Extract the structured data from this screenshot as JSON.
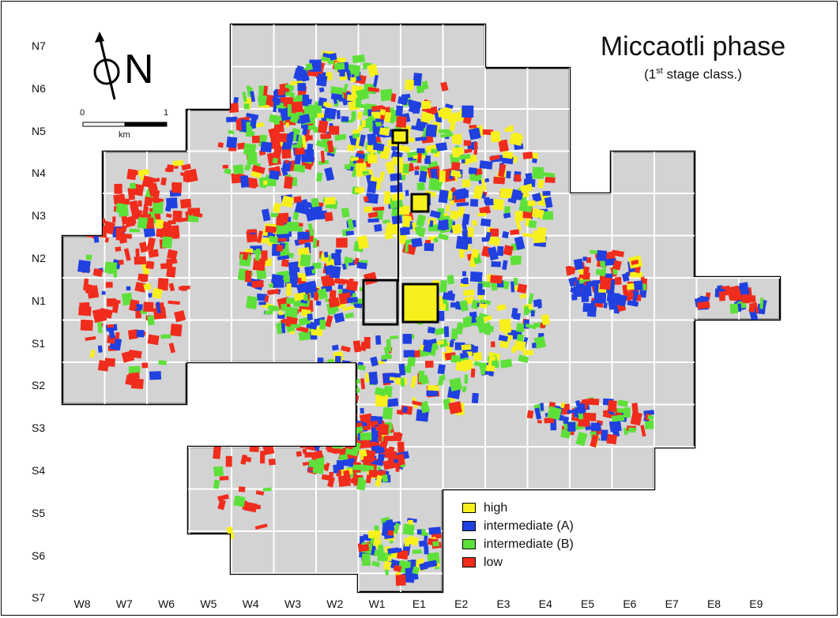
{
  "title": "Miccaotli phase",
  "subtitle": {
    "prefix": "(1",
    "sup": "st",
    "suffix": " stage class.)"
  },
  "north_arrow": {
    "label": "N"
  },
  "scale_bar": {
    "start": "0",
    "end": "1",
    "unit": "km"
  },
  "row_labels": [
    "N7",
    "N6",
    "N5",
    "N4",
    "N3",
    "N2",
    "N1",
    "S1",
    "S2",
    "S3",
    "S4",
    "S5",
    "S6",
    "S7"
  ],
  "col_labels": [
    "W8",
    "W7",
    "W6",
    "W5",
    "W4",
    "W3",
    "W2",
    "W1",
    "E1",
    "E2",
    "E3",
    "E4",
    "E5",
    "E6",
    "E7",
    "E8",
    "E9"
  ],
  "legend": [
    {
      "label": "high",
      "color": "#f7f01c"
    },
    {
      "label": "intermediate (A)",
      "color": "#2040e0"
    },
    {
      "label": "intermediate (B)",
      "color": "#5ee03a"
    },
    {
      "label": "low",
      "color": "#f02c1c"
    }
  ],
  "colors": {
    "survey_area": "#d3d3d3",
    "grid_lines": "#ffffff",
    "outline": "#000000"
  }
}
